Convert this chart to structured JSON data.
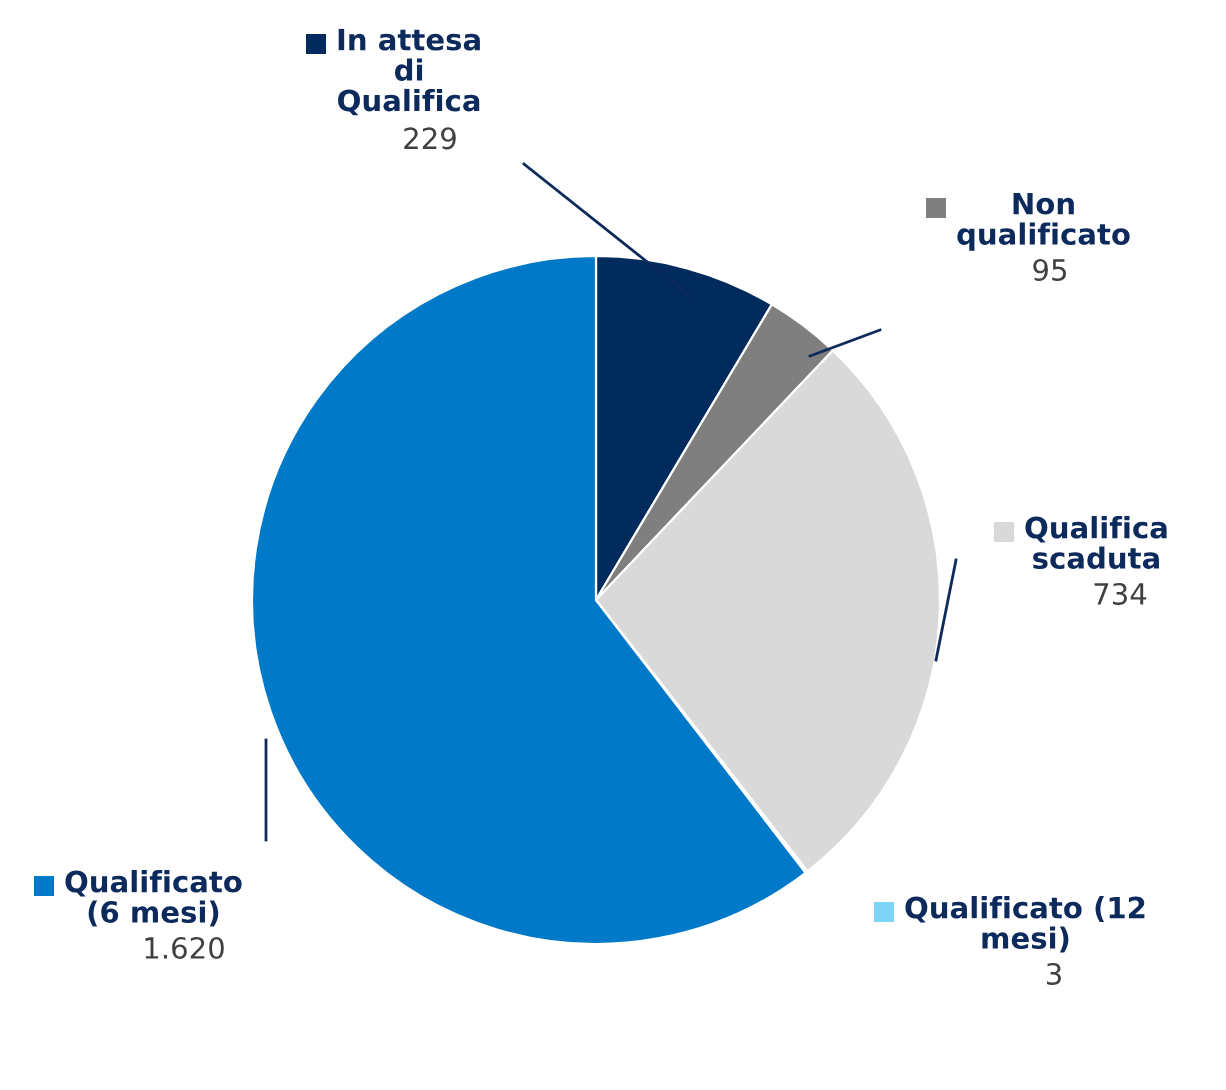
{
  "chart_data": {
    "type": "pie",
    "categories": [
      "In attesa\ndi\nQualifica",
      "Non\nqualificato",
      "Qualifica\nscaduta",
      "Qualificato (12\nmesi)",
      "Qualificato\n(6 mesi)"
    ],
    "values": [
      229,
      95,
      734,
      3,
      1620
    ],
    "value_labels": [
      "229",
      "95",
      "734",
      "3",
      "1.620"
    ],
    "colors": [
      "#002b5c",
      "#7f7f7f",
      "#d9d9d9",
      "#7fd3f7",
      "#0079c8"
    ],
    "legend": "right"
  }
}
